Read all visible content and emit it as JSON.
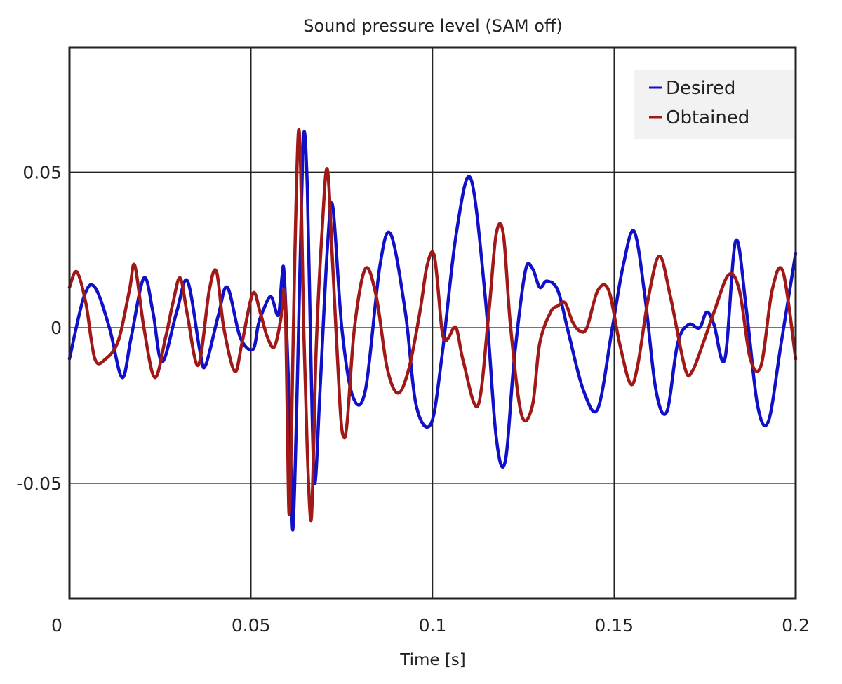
{
  "chart_data": {
    "type": "line",
    "title": "Sound pressure level (SAM off)",
    "xlabel": "Time [s]",
    "ylabel": "",
    "xlim": [
      0,
      0.2
    ],
    "ylim": [
      -0.087,
      0.09
    ],
    "xticks": [
      0,
      0.05,
      0.1,
      0.15,
      0.2
    ],
    "xtick_labels": [
      "0",
      "0.05",
      "0.1",
      "0.15",
      "0.2"
    ],
    "yticks": [
      -0.05,
      0,
      0.05
    ],
    "ytick_labels": [
      "-0.05",
      "0",
      "0.05"
    ],
    "grid": true,
    "legend_position": "top-right",
    "series": [
      {
        "name": "Desired",
        "color": "#1010c8",
        "x": [
          0,
          0.004,
          0.007,
          0.011,
          0.0145,
          0.017,
          0.0205,
          0.023,
          0.0255,
          0.0295,
          0.0325,
          0.036,
          0.0375,
          0.041,
          0.0435,
          0.047,
          0.0505,
          0.052,
          0.0535,
          0.0555,
          0.0575,
          0.0585,
          0.059,
          0.0597,
          0.0608,
          0.0615,
          0.0625,
          0.0635,
          0.0645,
          0.0655,
          0.0665,
          0.0675,
          0.069,
          0.071,
          0.0725,
          0.075,
          0.078,
          0.0815,
          0.0855,
          0.0885,
          0.0925,
          0.0955,
          0.0995,
          0.1025,
          0.1065,
          0.1105,
          0.1145,
          0.1175,
          0.12,
          0.1225,
          0.1255,
          0.1275,
          0.1295,
          0.1315,
          0.1345,
          0.1375,
          0.1415,
          0.1455,
          0.1495,
          0.1525,
          0.1555,
          0.1585,
          0.1615,
          0.1645,
          0.1675,
          0.1705,
          0.1735,
          0.1755,
          0.1775,
          0.1805,
          0.1835,
          0.1865,
          0.1895,
          0.1925,
          0.196,
          0.2
        ],
        "y": [
          -0.01,
          0.01,
          0.013,
          0.0,
          -0.016,
          -0.003,
          0.016,
          0.005,
          -0.011,
          0.005,
          0.015,
          -0.008,
          -0.012,
          0.004,
          0.013,
          -0.003,
          -0.007,
          0.001,
          0.006,
          0.01,
          0.004,
          0.016,
          0.019,
          0.003,
          -0.035,
          -0.065,
          -0.03,
          0.02,
          0.062,
          0.045,
          -0.01,
          -0.05,
          -0.02,
          0.025,
          0.039,
          0.0,
          -0.022,
          -0.02,
          0.02,
          0.03,
          0.005,
          -0.025,
          -0.031,
          -0.01,
          0.03,
          0.048,
          0.01,
          -0.035,
          -0.043,
          -0.01,
          0.018,
          0.019,
          0.013,
          0.015,
          0.012,
          -0.002,
          -0.02,
          -0.026,
          0.0,
          0.02,
          0.031,
          0.01,
          -0.02,
          -0.027,
          -0.005,
          0.001,
          0.0,
          0.005,
          0.001,
          -0.01,
          0.028,
          0.005,
          -0.025,
          -0.03,
          -0.005,
          0.024
        ]
      },
      {
        "name": "Obtained",
        "color": "#a01818",
        "x": [
          0,
          0.002,
          0.0045,
          0.007,
          0.01,
          0.0135,
          0.0165,
          0.018,
          0.0205,
          0.0235,
          0.0265,
          0.0285,
          0.0305,
          0.0325,
          0.0355,
          0.0385,
          0.0405,
          0.0425,
          0.0455,
          0.0475,
          0.0505,
          0.0525,
          0.0545,
          0.0565,
          0.0585,
          0.059,
          0.0595,
          0.06,
          0.0605,
          0.0612,
          0.062,
          0.063,
          0.0637,
          0.0645,
          0.0655,
          0.0665,
          0.0672,
          0.068,
          0.0695,
          0.071,
          0.0725,
          0.0745,
          0.0755,
          0.0765,
          0.0785,
          0.0815,
          0.0845,
          0.0875,
          0.0905,
          0.0935,
          0.0965,
          0.0985,
          0.1005,
          0.1025,
          0.1035,
          0.1045,
          0.1065,
          0.1085,
          0.1125,
          0.1155,
          0.1175,
          0.1195,
          0.1215,
          0.1245,
          0.1275,
          0.1295,
          0.1325,
          0.1345,
          0.1365,
          0.1385,
          0.1405,
          0.1425,
          0.1455,
          0.1485,
          0.1515,
          0.1545,
          0.1565,
          0.1595,
          0.1625,
          0.1655,
          0.1695,
          0.1715,
          0.1745,
          0.1775,
          0.1815,
          0.1845,
          0.1875,
          0.1905,
          0.1935,
          0.1965,
          0.2
        ],
        "y": [
          0.013,
          0.018,
          0.008,
          -0.01,
          -0.01,
          -0.004,
          0.012,
          0.02,
          0.0,
          -0.016,
          -0.003,
          0.008,
          0.016,
          0.004,
          -0.012,
          0.012,
          0.018,
          0.0,
          -0.014,
          -0.005,
          0.011,
          0.005,
          -0.003,
          -0.006,
          0.005,
          0.012,
          0.006,
          -0.03,
          -0.06,
          -0.03,
          0.02,
          0.062,
          0.05,
          0.0,
          -0.04,
          -0.062,
          -0.04,
          -0.005,
          0.03,
          0.051,
          0.02,
          -0.025,
          -0.035,
          -0.03,
          0.0,
          0.019,
          0.01,
          -0.013,
          -0.021,
          -0.013,
          0.005,
          0.02,
          0.023,
          0.0,
          -0.004,
          -0.003,
          0.0,
          -0.011,
          -0.025,
          0.005,
          0.03,
          0.03,
          0.0,
          -0.028,
          -0.025,
          -0.005,
          0.005,
          0.007,
          0.008,
          0.002,
          -0.001,
          0.0,
          0.012,
          0.012,
          -0.005,
          -0.018,
          -0.012,
          0.01,
          0.023,
          0.01,
          -0.013,
          -0.014,
          -0.005,
          0.005,
          0.017,
          0.012,
          -0.01,
          -0.012,
          0.012,
          0.018,
          -0.01
        ]
      }
    ]
  }
}
